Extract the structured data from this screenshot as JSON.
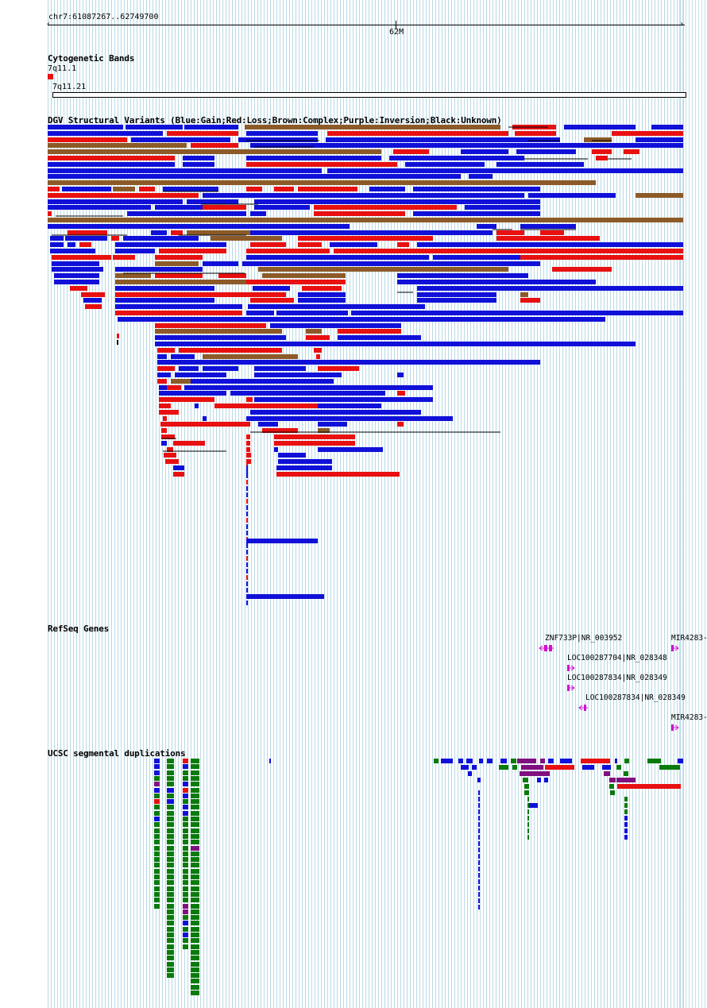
{
  "ruler": {
    "range": "chr7:61087267..62749700",
    "tick_label": "62M"
  },
  "tracks": {
    "cytoband": {
      "title": "Cytogenetic Bands",
      "band_a": "7q11.1",
      "band_b": "7q11.21"
    },
    "dgv": {
      "title": "DGV Structural Variants (Blue:Gain;Red:Loss;Brown:Complex;Purple:Inversion;Black:Unknown)"
    },
    "refseq": {
      "title": "RefSeq Genes",
      "genes": [
        "ZNF733P|NR_003952",
        "MIR4283-",
        "LOC100287704|NR_028348",
        "LOC100287834|NR_028349",
        "LOC100287834|NR_028349",
        "MIR4283-"
      ]
    },
    "segdup": {
      "title": "UCSC segmental duplications"
    }
  },
  "colors": {
    "gain": "#1010d8",
    "loss": "#e81010",
    "complex": "#8c5a28",
    "inversion": "#801080",
    "unknown": "#000000",
    "gene": "#d010d0",
    "segdup_green": "#0a7a0a",
    "grid": "#b9d9e6"
  }
}
